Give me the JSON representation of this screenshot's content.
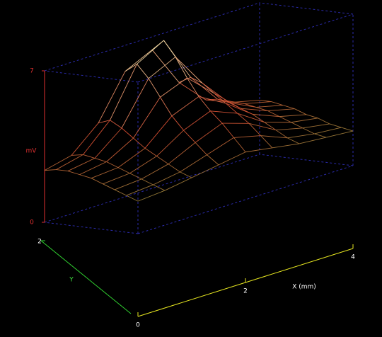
{
  "chart_data": {
    "type": "surface",
    "x_label": "X (mm)",
    "y_label": "Y",
    "z_label": "mV",
    "x": [
      0,
      0.5,
      1,
      1.5,
      2,
      2.5,
      3,
      3.5,
      4
    ],
    "y": [
      0,
      0.25,
      0.5,
      0.75,
      1,
      1.25,
      1.5,
      1.75,
      2
    ],
    "z": [
      [
        1.5,
        1.6,
        1.8,
        2.0,
        2.2,
        2.0,
        1.8,
        1.7,
        1.6
      ],
      [
        1.7,
        1.8,
        2.0,
        2.4,
        2.8,
        2.5,
        2.0,
        1.8,
        1.7
      ],
      [
        1.9,
        2.0,
        2.3,
        2.9,
        3.4,
        3.0,
        2.3,
        2.0,
        1.8
      ],
      [
        2.1,
        2.2,
        2.6,
        3.4,
        3.9,
        3.4,
        2.6,
        2.2,
        2.0
      ],
      [
        2.3,
        2.4,
        2.9,
        4.0,
        4.5,
        3.8,
        2.9,
        2.4,
        2.1
      ],
      [
        2.4,
        2.6,
        3.3,
        4.8,
        5.3,
        4.2,
        3.1,
        2.6,
        2.3
      ],
      [
        2.5,
        2.7,
        3.7,
        5.6,
        6.2,
        4.6,
        3.3,
        2.7,
        2.4
      ],
      [
        2.5,
        2.8,
        4.0,
        6.2,
        6.9,
        4.8,
        3.4,
        2.8,
        2.5
      ],
      [
        2.4,
        2.7,
        3.8,
        5.8,
        6.4,
        4.5,
        3.3,
        2.8,
        2.5
      ]
    ],
    "xlim": [
      0,
      4
    ],
    "xticks": [
      0,
      2,
      4
    ],
    "ylim": [
      0,
      2
    ],
    "yticks": [
      2
    ],
    "zlim": [
      0,
      7
    ],
    "zticks": [
      0,
      7
    ],
    "colormap": [
      "#5f9a3c",
      "#d04a30",
      "#f4e8b0"
    ],
    "box_color": "#2a2aa8"
  }
}
